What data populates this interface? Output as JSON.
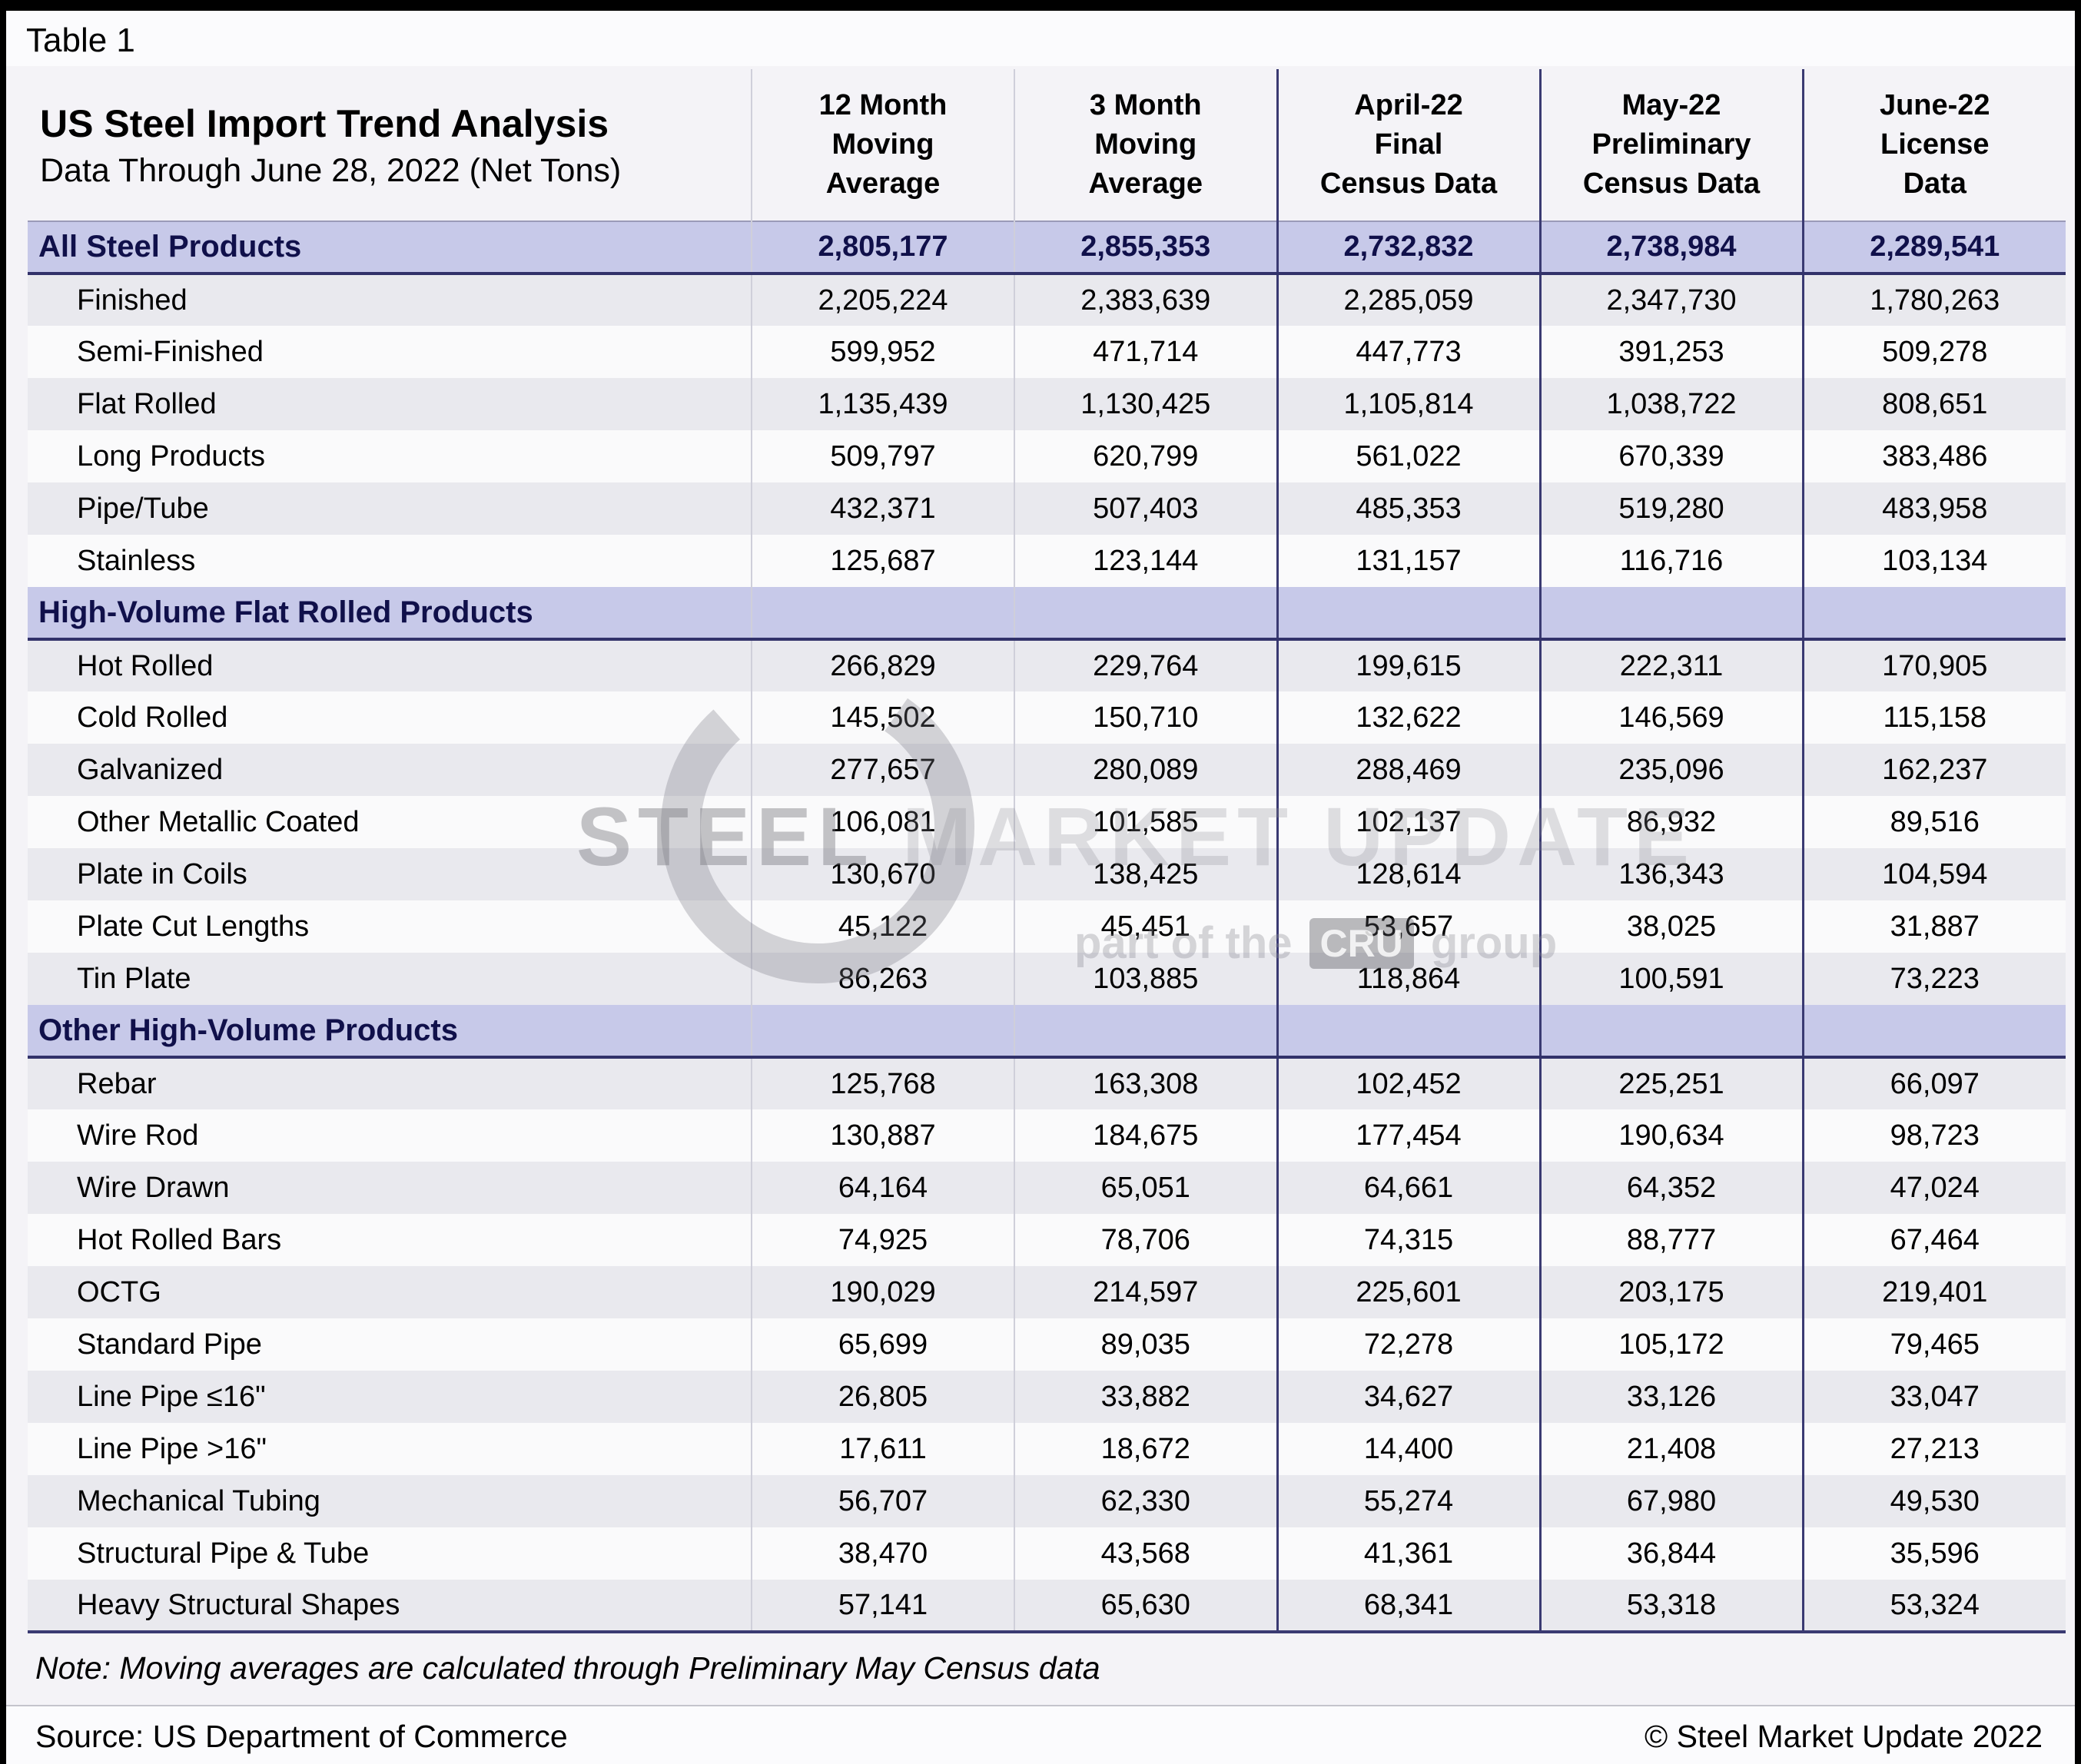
{
  "page": {
    "table_label": "Table 1"
  },
  "chart_data": {
    "type": "table",
    "title": "US Steel Import Trend Analysis",
    "subtitle": "Data Through June 28, 2022 (Net Tons)",
    "columns": [
      {
        "lines": [
          "12 Month",
          "Moving",
          "Average"
        ]
      },
      {
        "lines": [
          "3 Month",
          "Moving",
          "Average"
        ]
      },
      {
        "lines": [
          "April-22",
          "Final",
          "Census Data"
        ]
      },
      {
        "lines": [
          "May-22",
          "Preliminary",
          "Census Data"
        ]
      },
      {
        "lines": [
          "June-22",
          "License",
          "Data"
        ]
      }
    ],
    "sections": [
      {
        "header": {
          "label": "All Steel Products",
          "values": [
            "2,805,177",
            "2,855,353",
            "2,732,832",
            "2,738,984",
            "2,289,541"
          ]
        },
        "rows": [
          {
            "label": "Finished",
            "values": [
              "2,205,224",
              "2,383,639",
              "2,285,059",
              "2,347,730",
              "1,780,263"
            ]
          },
          {
            "label": "Semi-Finished",
            "values": [
              "599,952",
              "471,714",
              "447,773",
              "391,253",
              "509,278"
            ]
          },
          {
            "label": "Flat Rolled",
            "values": [
              "1,135,439",
              "1,130,425",
              "1,105,814",
              "1,038,722",
              "808,651"
            ]
          },
          {
            "label": "Long Products",
            "values": [
              "509,797",
              "620,799",
              "561,022",
              "670,339",
              "383,486"
            ]
          },
          {
            "label": "Pipe/Tube",
            "values": [
              "432,371",
              "507,403",
              "485,353",
              "519,280",
              "483,958"
            ]
          },
          {
            "label": "Stainless",
            "values": [
              "125,687",
              "123,144",
              "131,157",
              "116,716",
              "103,134"
            ]
          }
        ]
      },
      {
        "header": {
          "label": "High-Volume Flat Rolled Products",
          "values": [
            "",
            "",
            "",
            "",
            ""
          ]
        },
        "rows": [
          {
            "label": "Hot Rolled",
            "values": [
              "266,829",
              "229,764",
              "199,615",
              "222,311",
              "170,905"
            ]
          },
          {
            "label": "Cold Rolled",
            "values": [
              "145,502",
              "150,710",
              "132,622",
              "146,569",
              "115,158"
            ]
          },
          {
            "label": "Galvanized",
            "values": [
              "277,657",
              "280,089",
              "288,469",
              "235,096",
              "162,237"
            ]
          },
          {
            "label": "Other Metallic Coated",
            "values": [
              "106,081",
              "101,585",
              "102,137",
              "86,932",
              "89,516"
            ]
          },
          {
            "label": "Plate in Coils",
            "values": [
              "130,670",
              "138,425",
              "128,614",
              "136,343",
              "104,594"
            ]
          },
          {
            "label": "Plate Cut Lengths",
            "values": [
              "45,122",
              "45,451",
              "53,657",
              "38,025",
              "31,887"
            ]
          },
          {
            "label": "Tin Plate",
            "values": [
              "86,263",
              "103,885",
              "118,864",
              "100,591",
              "73,223"
            ]
          }
        ]
      },
      {
        "header": {
          "label": "Other High-Volume Products",
          "values": [
            "",
            "",
            "",
            "",
            ""
          ]
        },
        "rows": [
          {
            "label": "Rebar",
            "values": [
              "125,768",
              "163,308",
              "102,452",
              "225,251",
              "66,097"
            ]
          },
          {
            "label": "Wire Rod",
            "values": [
              "130,887",
              "184,675",
              "177,454",
              "190,634",
              "98,723"
            ]
          },
          {
            "label": "Wire Drawn",
            "values": [
              "64,164",
              "65,051",
              "64,661",
              "64,352",
              "47,024"
            ]
          },
          {
            "label": "Hot Rolled Bars",
            "values": [
              "74,925",
              "78,706",
              "74,315",
              "88,777",
              "67,464"
            ]
          },
          {
            "label": "OCTG",
            "values": [
              "190,029",
              "214,597",
              "225,601",
              "203,175",
              "219,401"
            ]
          },
          {
            "label": "Standard Pipe",
            "values": [
              "65,699",
              "89,035",
              "72,278",
              "105,172",
              "79,465"
            ]
          },
          {
            "label": "Line Pipe ≤16\"",
            "values": [
              "26,805",
              "33,882",
              "34,627",
              "33,126",
              "33,047"
            ]
          },
          {
            "label": "Line Pipe >16\"",
            "values": [
              "17,611",
              "18,672",
              "14,400",
              "21,408",
              "27,213"
            ]
          },
          {
            "label": "Mechanical Tubing",
            "values": [
              "56,707",
              "62,330",
              "55,274",
              "67,980",
              "49,530"
            ]
          },
          {
            "label": "Structural Pipe & Tube",
            "values": [
              "38,470",
              "43,568",
              "41,361",
              "36,844",
              "35,596"
            ]
          },
          {
            "label": "Heavy Structural Shapes",
            "values": [
              "57,141",
              "65,630",
              "68,341",
              "53,318",
              "53,324"
            ]
          }
        ]
      }
    ]
  },
  "footer": {
    "note": "Note: Moving averages are calculated through Preliminary May Census data",
    "source": "Source: US Department of Commerce",
    "copyright": "© Steel Market Update 2022"
  },
  "watermark": {
    "word1": "STEEL",
    "word2": " MARKET UPDATE",
    "sub_pre": "part of the",
    "cru": "CRU",
    "sub_post": "group"
  }
}
